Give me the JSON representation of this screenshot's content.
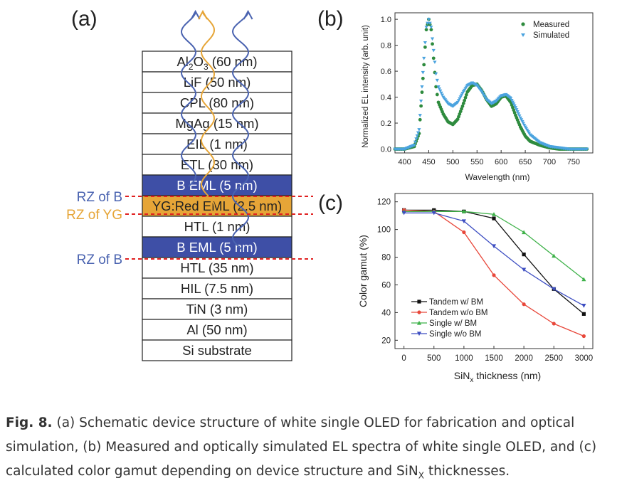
{
  "panel_a": {
    "label": "(a)",
    "layers": [
      {
        "name": "Al",
        "sub": "2",
        "name2": "O",
        "sub2": "3",
        "thickness": "(60 nm)",
        "fill": "#ffffff"
      },
      {
        "name": "LiF",
        "thickness": "(50 nm)",
        "fill": "#ffffff"
      },
      {
        "name": "CPL",
        "thickness": "(80 nm)",
        "fill": "#ffffff"
      },
      {
        "name": "MgAg",
        "thickness": "(15 nm)",
        "fill": "#ffffff"
      },
      {
        "name": "EIL",
        "thickness": "(1 nm)",
        "fill": "#ffffff"
      },
      {
        "name": "ETL",
        "thickness": "(30 nm)",
        "fill": "#ffffff"
      },
      {
        "name": "B EML",
        "thickness": "(5 nm)",
        "fill": "#3e4fa6"
      },
      {
        "name": "YG:Red EML",
        "thickness": "(2.5 nm)",
        "fill": "#e6a537"
      },
      {
        "name": "HTL",
        "thickness": "(1 nm)",
        "fill": "#ffffff"
      },
      {
        "name": "B EML",
        "thickness": "(5 nm)",
        "fill": "#3e4fa6"
      },
      {
        "name": "HTL",
        "thickness": "(35 nm)",
        "fill": "#ffffff"
      },
      {
        "name": "HIL",
        "thickness": "(7.5 nm)",
        "fill": "#ffffff"
      },
      {
        "name": "TiN",
        "thickness": "(3 nm)",
        "fill": "#ffffff"
      },
      {
        "name": "Al",
        "thickness": "(50 nm)",
        "fill": "#ffffff"
      },
      {
        "name": "Si substrate",
        "thickness": "",
        "fill": "#ffffff"
      }
    ],
    "rz_labels": [
      {
        "text": "RZ of B",
        "color": "#4a63b0"
      },
      {
        "text": "RZ of YG",
        "color": "#e6a537"
      },
      {
        "text": "RZ of B",
        "color": "#4a63b0"
      }
    ],
    "colors": {
      "blue": "#3e4fa6",
      "orange": "#e6a537",
      "dash": "#e02020"
    }
  },
  "chart_data": [
    {
      "panel": "(b)",
      "type": "scatter",
      "xlabel": "Wavelength (nm)",
      "ylabel": "Normalized EL intensity (arb. unit)",
      "xlim": [
        380,
        790
      ],
      "ylim": [
        -0.03,
        1.05
      ],
      "xticks": [
        400,
        450,
        500,
        550,
        600,
        650,
        700,
        750
      ],
      "yticks": [
        "0.0",
        "0.2",
        "0.4",
        "0.6",
        "0.8",
        "1.0"
      ],
      "series": [
        {
          "name": "Measured",
          "color": "#2e8b3e",
          "marker": "circle",
          "x": [
            380,
            400,
            420,
            430,
            440,
            445,
            450,
            455,
            460,
            465,
            470,
            480,
            490,
            500,
            510,
            520,
            530,
            540,
            550,
            560,
            570,
            580,
            590,
            600,
            610,
            620,
            630,
            640,
            650,
            660,
            680,
            700,
            720,
            740,
            760,
            780
          ],
          "y": [
            0.0,
            0.0,
            0.02,
            0.12,
            0.65,
            0.92,
            1.0,
            0.92,
            0.7,
            0.48,
            0.36,
            0.27,
            0.21,
            0.19,
            0.23,
            0.33,
            0.44,
            0.49,
            0.5,
            0.45,
            0.38,
            0.33,
            0.35,
            0.4,
            0.41,
            0.36,
            0.26,
            0.17,
            0.1,
            0.06,
            0.03,
            0.01,
            0.0,
            0.0,
            0.0,
            0.0
          ]
        },
        {
          "name": "Simulated",
          "color": "#4aa3df",
          "marker": "triangle-down",
          "x": [
            380,
            400,
            420,
            430,
            440,
            445,
            450,
            455,
            460,
            465,
            470,
            480,
            490,
            500,
            510,
            520,
            530,
            540,
            550,
            560,
            570,
            580,
            590,
            600,
            610,
            620,
            630,
            640,
            650,
            660,
            680,
            700,
            720,
            740,
            760,
            780
          ],
          "y": [
            0.0,
            0.0,
            0.03,
            0.15,
            0.7,
            0.94,
            1.0,
            0.94,
            0.76,
            0.58,
            0.48,
            0.4,
            0.35,
            0.33,
            0.36,
            0.43,
            0.49,
            0.51,
            0.49,
            0.44,
            0.38,
            0.35,
            0.37,
            0.41,
            0.42,
            0.39,
            0.32,
            0.24,
            0.17,
            0.11,
            0.05,
            0.02,
            0.01,
            0.0,
            0.0,
            0.0
          ]
        }
      ]
    },
    {
      "panel": "(c)",
      "type": "line",
      "xlabel": "SiN",
      "xlabel_sub": "x",
      "xlabel_rest": " thickness (nm)",
      "ylabel": "Color gamut (%)",
      "xlim": [
        -150,
        3150
      ],
      "ylim": [
        14,
        126
      ],
      "xticks": [
        0,
        500,
        1000,
        1500,
        2000,
        2500,
        3000
      ],
      "yticks": [
        20,
        40,
        60,
        80,
        100,
        120
      ],
      "x": [
        0,
        500,
        1000,
        1500,
        2000,
        2500,
        3000
      ],
      "series": [
        {
          "name": "Tandem w/ BM",
          "color": "#111111",
          "marker": "square",
          "values": [
            114,
            114,
            113,
            108,
            82,
            57,
            39
          ]
        },
        {
          "name": "Tandem w/o BM",
          "color": "#e8473a",
          "marker": "circle",
          "values": [
            114,
            113,
            98,
            67,
            46,
            32,
            23
          ]
        },
        {
          "name": "Single w/ BM",
          "color": "#3fb24a",
          "marker": "triangle-up",
          "values": [
            113,
            113,
            113,
            111,
            98,
            81,
            64
          ]
        },
        {
          "name": "Single w/o BM",
          "color": "#3d4ec2",
          "marker": "triangle-down",
          "values": [
            112,
            112,
            106,
            88,
            71,
            57,
            45
          ]
        }
      ]
    }
  ],
  "caption": {
    "label": "Fig. 8.",
    "text1": " (a) Schematic device structure of white single OLED for fabrication and optical simulation, (b) Measured and optically simulated EL spectra of white single OLED, and (c) calculated color gamut depending on device structure and SiN",
    "sub": "X",
    "text2": " thicknesses."
  }
}
